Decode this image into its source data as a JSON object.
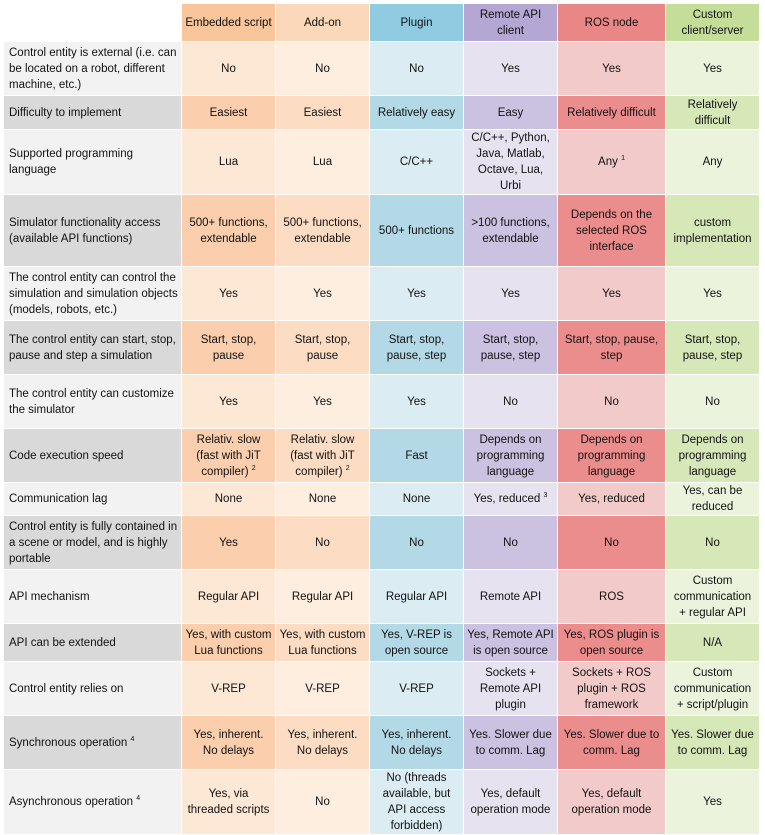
{
  "headers": [
    "Embedded script",
    "Add-on",
    "Plugin",
    "Remote API client",
    "ROS node",
    "Custom client/server"
  ],
  "rows": [
    {
      "label": "Control entity is external (i.e. can be located on a robot, different machine, etc.)",
      "cells": [
        "No",
        "No",
        "No",
        "Yes",
        "Yes",
        "Yes"
      ]
    },
    {
      "label": "Difficulty to implement",
      "cells": [
        "Easiest",
        "Easiest",
        "Relatively easy",
        "Easy",
        "Relatively difficult",
        "Relatively difficult"
      ]
    },
    {
      "label": "Supported programming language",
      "cells": [
        "Lua",
        "Lua",
        "C/C++",
        "C/C++, Python, Java, Matlab, Octave, Lua, Urbi",
        "Any",
        "Any"
      ],
      "notes": {
        "c5": "1"
      }
    },
    {
      "label": "Simulator functionality access (available API functions)",
      "cells": [
        "500+ functions, extendable",
        "500+ functions, extendable",
        "500+ functions",
        ">100 functions, extendable",
        "Depends on the selected ROS interface",
        "custom implementation"
      ]
    },
    {
      "label": "The control entity can control the simulation and simulation objects (models, robots, etc.)",
      "cells": [
        "Yes",
        "Yes",
        "Yes",
        "Yes",
        "Yes",
        "Yes"
      ]
    },
    {
      "label": "The control entity can start, stop, pause and step a simulation",
      "cells": [
        "Start, stop, pause",
        "Start, stop, pause",
        "Start, stop, pause, step",
        "Start, stop, pause, step",
        "Start, stop, pause, step",
        "Start, stop, pause, step"
      ]
    },
    {
      "label": "The control entity can customize the simulator",
      "cells": [
        "Yes",
        "Yes",
        "Yes",
        "No",
        "No",
        "No"
      ]
    },
    {
      "label": "Code execution speed",
      "cells": [
        "Relativ. slow (fast with JiT compiler)",
        "Relativ. slow (fast with JiT compiler)",
        "Fast",
        "Depends on programming language",
        "Depends on programming language",
        "Depends on programming language"
      ],
      "notes": {
        "c1": "2",
        "c2": "2"
      }
    },
    {
      "label": "Communication lag",
      "cells": [
        "None",
        "None",
        "None",
        "Yes, reduced",
        "Yes, reduced",
        "Yes, can be reduced"
      ],
      "notes": {
        "c4": "3"
      }
    },
    {
      "label": "Control entity is fully contained in a scene or model, and is highly portable",
      "cells": [
        "Yes",
        "No",
        "No",
        "No",
        "No",
        "No"
      ]
    },
    {
      "label": "API mechanism",
      "cells": [
        "Regular API",
        "Regular API",
        "Regular API",
        "Remote API",
        "ROS",
        "Custom communication + regular API"
      ]
    },
    {
      "label": "API can be extended",
      "cells": [
        "Yes, with custom Lua functions",
        "Yes, with custom Lua functions",
        "Yes, V-REP is open source",
        "Yes, Remote API is open source",
        "Yes, ROS plugin is open source",
        "N/A"
      ]
    },
    {
      "label": "Control entity relies on",
      "cells": [
        "V-REP",
        "V-REP",
        "V-REP",
        "Sockets + Remote API plugin",
        "Sockets + ROS plugin + ROS framework",
        "Custom communication + script/plugin"
      ]
    },
    {
      "label": "Synchronous operation",
      "cells": [
        "Yes, inherent. No delays",
        "Yes, inherent. No delays",
        "Yes, inherent. No delays",
        "Yes. Slower due to comm. Lag",
        "Yes. Slower due to comm. Lag",
        "Yes. Slower due to comm. Lag"
      ],
      "label_note": "4"
    },
    {
      "label": "Asynchronous operation",
      "cells": [
        "Yes, via threaded scripts",
        "No",
        "No (threads available, but API access forbidden)",
        "Yes, default operation mode",
        "Yes, default operation mode",
        "Yes"
      ],
      "label_note": "4"
    }
  ]
}
